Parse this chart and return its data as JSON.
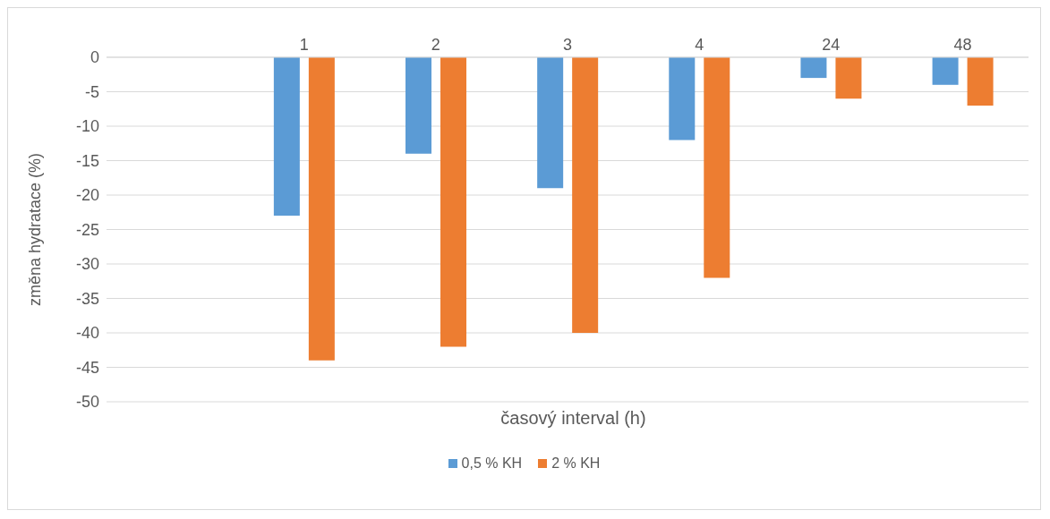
{
  "chart_data": {
    "type": "bar",
    "xlabel": "časový interval (h)",
    "ylabel": "změna hydratace (%)",
    "categories": [
      null,
      "1",
      "2",
      "3",
      "4",
      "24",
      "48"
    ],
    "series": [
      {
        "name": "0,5 % KH",
        "color": "#5b9bd5",
        "values": [
          null,
          -23,
          -14,
          -19,
          -12,
          -3,
          -4
        ]
      },
      {
        "name": "2 % KH",
        "color": "#ed7d31",
        "values": [
          null,
          -44,
          -42,
          -40,
          -32,
          -6,
          -7
        ]
      }
    ],
    "ylim": [
      -50,
      0
    ],
    "yticks": [
      0,
      -5,
      -10,
      -15,
      -20,
      -25,
      -30,
      -35,
      -40,
      -45,
      -50
    ],
    "grid": "y",
    "legend": "bottom"
  }
}
